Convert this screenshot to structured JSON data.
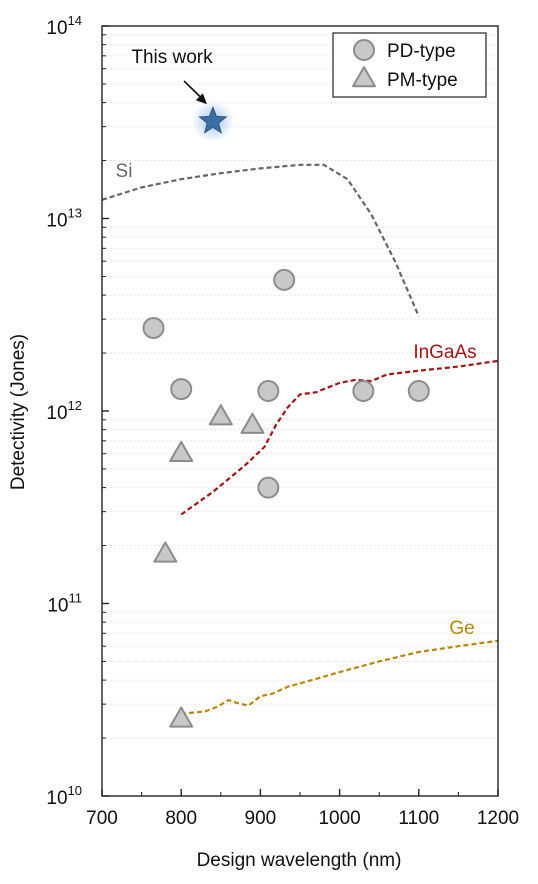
{
  "chart_data": {
    "type": "scatter",
    "xlabel": "Design wavelength (nm)",
    "ylabel": "Detectivity (Jones)",
    "xlim": [
      700,
      1200
    ],
    "ylim": [
      10000000000.0,
      100000000000000.0
    ],
    "y_scale": "log",
    "x_ticks": [
      "700",
      "800",
      "900",
      "1000",
      "1100",
      "1200"
    ],
    "y_ticks": [
      {
        "base": "10",
        "exp": "10"
      },
      {
        "base": "10",
        "exp": "11"
      },
      {
        "base": "10",
        "exp": "12"
      },
      {
        "base": "10",
        "exp": "13"
      },
      {
        "base": "10",
        "exp": "14"
      }
    ],
    "grid": "horizontal minor dotted",
    "legend_position": "top-right",
    "series": [
      {
        "name": "PD-type",
        "marker": "circle",
        "color": "#c8c8c8",
        "points": [
          {
            "x": 765,
            "y": 2700000000000.0
          },
          {
            "x": 800,
            "y": 1300000000000.0
          },
          {
            "x": 910,
            "y": 1270000000000.0
          },
          {
            "x": 930,
            "y": 4800000000000.0
          },
          {
            "x": 910,
            "y": 400000000000.0
          },
          {
            "x": 1030,
            "y": 1270000000000.0
          },
          {
            "x": 1100,
            "y": 1270000000000.0
          }
        ]
      },
      {
        "name": "PM-type",
        "marker": "triangle",
        "color": "#c8c8c8",
        "points": [
          {
            "x": 850,
            "y": 930000000000.0
          },
          {
            "x": 890,
            "y": 840000000000.0
          },
          {
            "x": 800,
            "y": 600000000000.0
          },
          {
            "x": 780,
            "y": 180000000000.0
          },
          {
            "x": 800,
            "y": 25000000000.0
          }
        ]
      },
      {
        "name": "This work",
        "marker": "star",
        "color": "#3a6ea5",
        "points": [
          {
            "x": 840,
            "y": 32000000000000.0
          }
        ]
      }
    ],
    "curves": [
      {
        "name": "Si",
        "color": "#666666",
        "points": [
          [
            700,
            12500000000000.0
          ],
          [
            750,
            14500000000000.0
          ],
          [
            800,
            16000000000000.0
          ],
          [
            850,
            17200000000000.0
          ],
          [
            900,
            18200000000000.0
          ],
          [
            950,
            19000000000000.0
          ],
          [
            980,
            19000000000000.0
          ],
          [
            1010,
            16000000000000.0
          ],
          [
            1040,
            10500000000000.0
          ],
          [
            1070,
            6000000000000.0
          ],
          [
            1100,
            3100000000000.0
          ]
        ]
      },
      {
        "name": "InGaAs",
        "color": "#a31515",
        "points": [
          [
            800,
            290000000000.0
          ],
          [
            840,
            380000000000.0
          ],
          [
            880,
            520000000000.0
          ],
          [
            905,
            650000000000.0
          ],
          [
            920,
            850000000000.0
          ],
          [
            935,
            1050000000000.0
          ],
          [
            950,
            1220000000000.0
          ],
          [
            970,
            1250000000000.0
          ],
          [
            1000,
            1400000000000.0
          ],
          [
            1020,
            1450000000000.0
          ],
          [
            1040,
            1430000000000.0
          ],
          [
            1060,
            1550000000000.0
          ],
          [
            1100,
            1620000000000.0
          ],
          [
            1150,
            1700000000000.0
          ],
          [
            1200,
            1820000000000.0
          ]
        ]
      },
      {
        "name": "Ge",
        "color": "#b8860b",
        "points": [
          [
            800,
            26500000000.0
          ],
          [
            810,
            27000000000.0
          ],
          [
            830,
            27500000000.0
          ],
          [
            845,
            29000000000.0
          ],
          [
            860,
            31500000000.0
          ],
          [
            870,
            30500000000.0
          ],
          [
            885,
            29500000000.0
          ],
          [
            900,
            33000000000.0
          ],
          [
            915,
            34000000000.0
          ],
          [
            935,
            37000000000.0
          ],
          [
            960,
            39500000000.0
          ],
          [
            1000,
            44000000000.0
          ],
          [
            1050,
            50000000000.0
          ],
          [
            1100,
            56000000000.0
          ],
          [
            1150,
            60000000000.0
          ],
          [
            1200,
            64000000000.0
          ]
        ]
      }
    ],
    "annotations": [
      {
        "text": "This work"
      }
    ]
  }
}
